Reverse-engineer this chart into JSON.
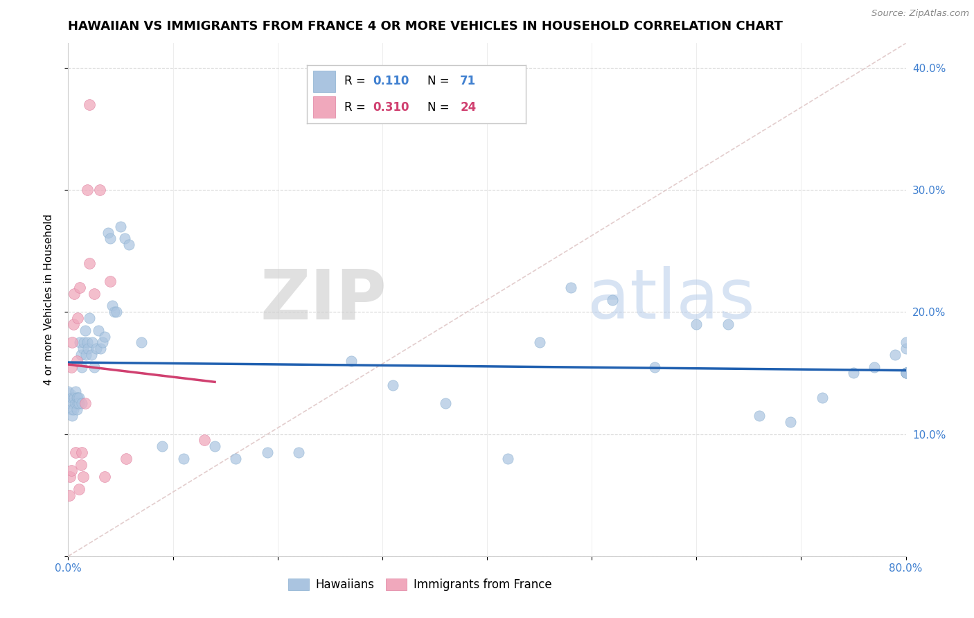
{
  "title": "HAWAIIAN VS IMMIGRANTS FROM FRANCE 4 OR MORE VEHICLES IN HOUSEHOLD CORRELATION CHART",
  "source": "Source: ZipAtlas.com",
  "ylabel": "4 or more Vehicles in Household",
  "xlim": [
    0.0,
    0.8
  ],
  "ylim": [
    0.0,
    0.42
  ],
  "background_color": "#ffffff",
  "grid_color": "#d8d8d8",
  "watermark_zip": "ZIP",
  "watermark_atlas": "atlas",
  "hawaiian_color": "#aac4e0",
  "france_color": "#f0a8bc",
  "hawaiian_R": 0.11,
  "hawaiian_N": 71,
  "france_R": 0.31,
  "france_N": 24,
  "hawaiian_line_color": "#2060b0",
  "france_line_color": "#d04070",
  "diag_line_color": "#e0c8c8",
  "tick_color_blue": "#4080d0",
  "title_fontsize": 13,
  "label_fontsize": 11,
  "tick_fontsize": 11,
  "legend_fontsize": 12,
  "hawaiian_x": [
    0.0,
    0.002,
    0.003,
    0.004,
    0.004,
    0.005,
    0.006,
    0.007,
    0.007,
    0.008,
    0.008,
    0.009,
    0.009,
    0.01,
    0.01,
    0.011,
    0.012,
    0.013,
    0.013,
    0.014,
    0.015,
    0.016,
    0.017,
    0.018,
    0.019,
    0.02,
    0.022,
    0.023,
    0.025,
    0.027,
    0.029,
    0.031,
    0.033,
    0.035,
    0.038,
    0.04,
    0.042,
    0.044,
    0.046,
    0.05,
    0.054,
    0.058,
    0.07,
    0.09,
    0.11,
    0.14,
    0.16,
    0.19,
    0.22,
    0.27,
    0.31,
    0.36,
    0.42,
    0.45,
    0.48,
    0.52,
    0.56,
    0.6,
    0.63,
    0.66,
    0.69,
    0.72,
    0.75,
    0.77,
    0.79,
    0.8,
    0.8,
    0.8,
    0.8,
    0.8,
    0.8
  ],
  "hawaiian_y": [
    0.135,
    0.125,
    0.12,
    0.13,
    0.115,
    0.12,
    0.13,
    0.125,
    0.135,
    0.13,
    0.12,
    0.13,
    0.125,
    0.125,
    0.13,
    0.175,
    0.165,
    0.155,
    0.125,
    0.17,
    0.175,
    0.185,
    0.165,
    0.175,
    0.17,
    0.195,
    0.165,
    0.175,
    0.155,
    0.17,
    0.185,
    0.17,
    0.175,
    0.18,
    0.265,
    0.26,
    0.205,
    0.2,
    0.2,
    0.27,
    0.26,
    0.255,
    0.175,
    0.09,
    0.08,
    0.09,
    0.08,
    0.085,
    0.085,
    0.16,
    0.14,
    0.125,
    0.08,
    0.175,
    0.22,
    0.21,
    0.155,
    0.19,
    0.19,
    0.115,
    0.11,
    0.13,
    0.15,
    0.155,
    0.165,
    0.15,
    0.15,
    0.15,
    0.15,
    0.17,
    0.175
  ],
  "france_x": [
    0.001,
    0.002,
    0.003,
    0.003,
    0.004,
    0.005,
    0.006,
    0.007,
    0.008,
    0.009,
    0.01,
    0.011,
    0.012,
    0.013,
    0.014,
    0.016,
    0.018,
    0.02,
    0.025,
    0.03,
    0.035,
    0.04,
    0.055,
    0.13
  ],
  "france_y": [
    0.05,
    0.065,
    0.07,
    0.155,
    0.175,
    0.19,
    0.215,
    0.085,
    0.16,
    0.195,
    0.055,
    0.22,
    0.075,
    0.085,
    0.065,
    0.125,
    0.3,
    0.24,
    0.215,
    0.3,
    0.065,
    0.225,
    0.08,
    0.095
  ],
  "france_outlier_x": [
    0.02
  ],
  "france_outlier_y": [
    0.37
  ]
}
